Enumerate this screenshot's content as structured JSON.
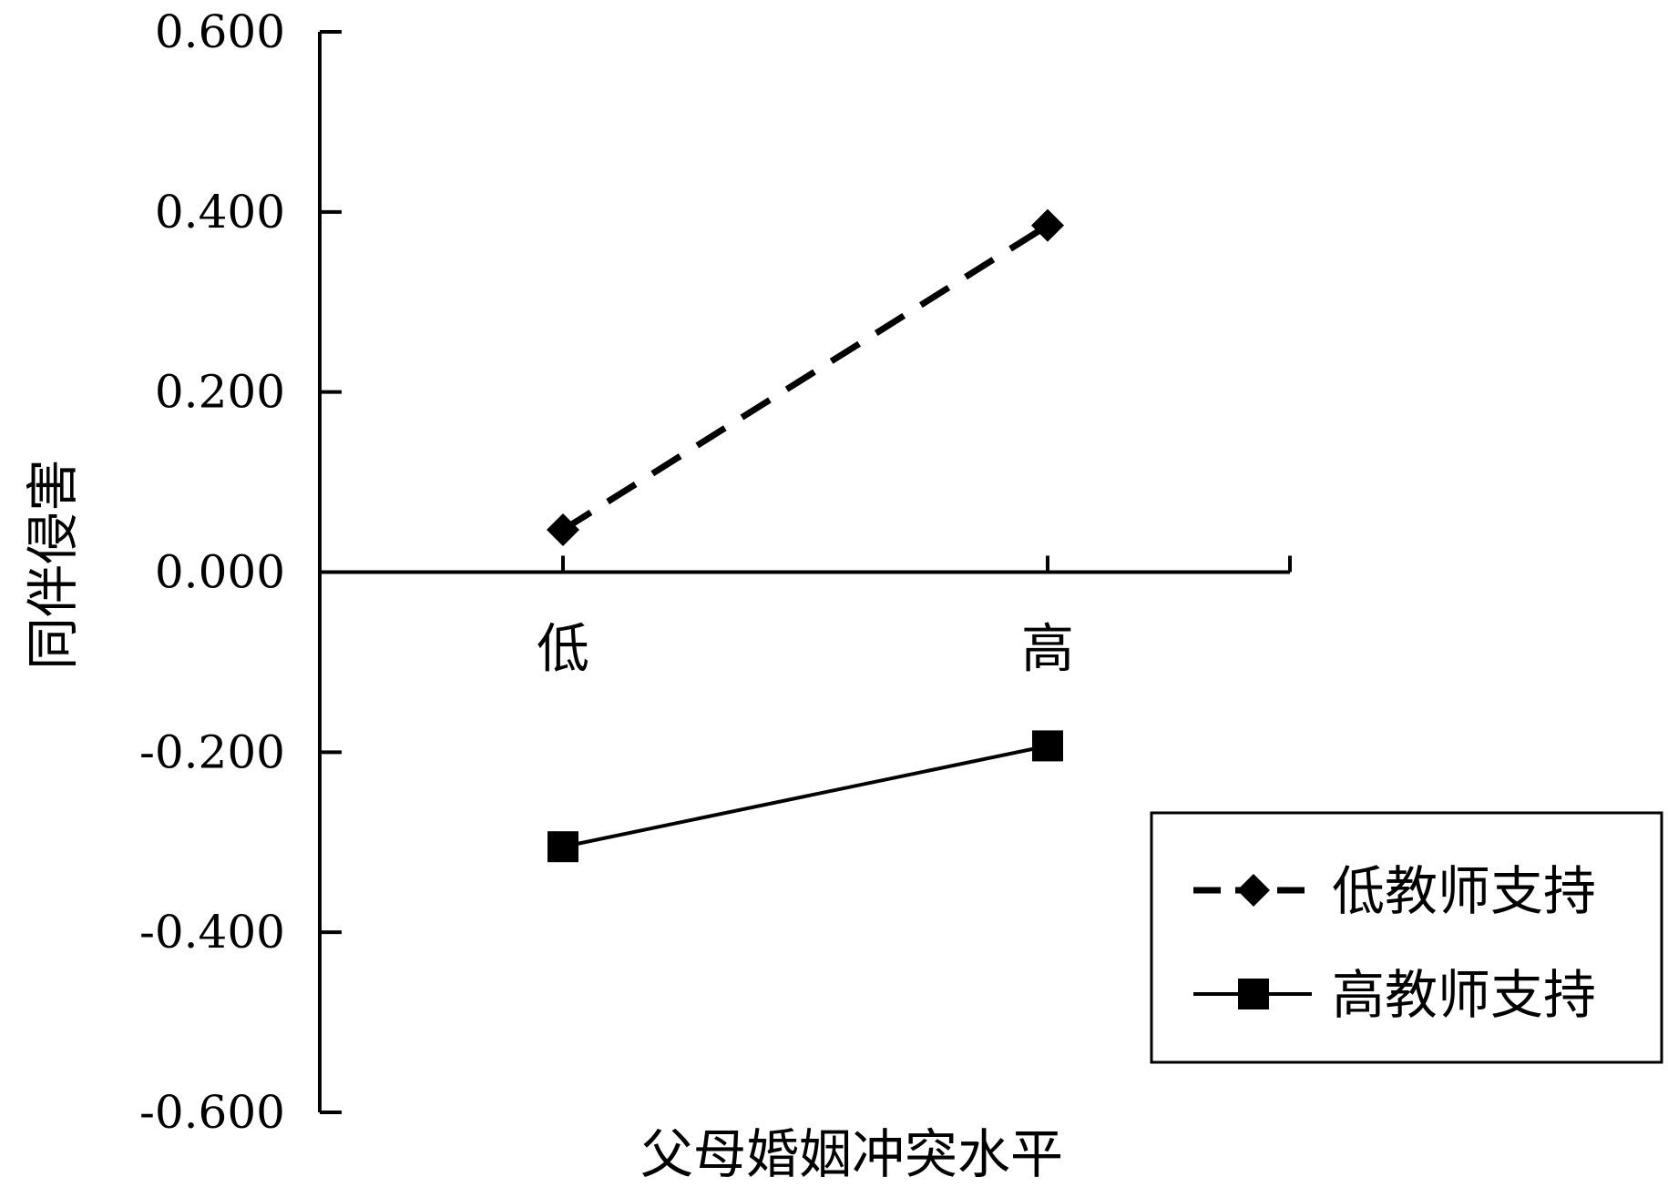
{
  "chart_data": {
    "type": "line",
    "xlabel": "父母婚姻冲突水平",
    "ylabel": "同伴侵害",
    "categories": [
      "低",
      "高"
    ],
    "ylim": [
      -0.6,
      0.6
    ],
    "yticks": [
      0.6,
      0.4,
      0.2,
      0.0,
      -0.2,
      -0.4,
      -0.6
    ],
    "ytick_labels": [
      "0.600",
      "0.400",
      "0.200",
      "0.000",
      "-0.200",
      "-0.400",
      "-0.600"
    ],
    "legend_position": "bottom-right",
    "grid": false,
    "series": [
      {
        "name": "低教师支持",
        "values": [
          0.047,
          0.385
        ],
        "line_style": "dashed",
        "marker": "diamond",
        "color": "#000000"
      },
      {
        "name": "高教师支持",
        "values": [
          -0.305,
          -0.193
        ],
        "line_style": "solid",
        "marker": "square",
        "color": "#000000"
      }
    ]
  }
}
